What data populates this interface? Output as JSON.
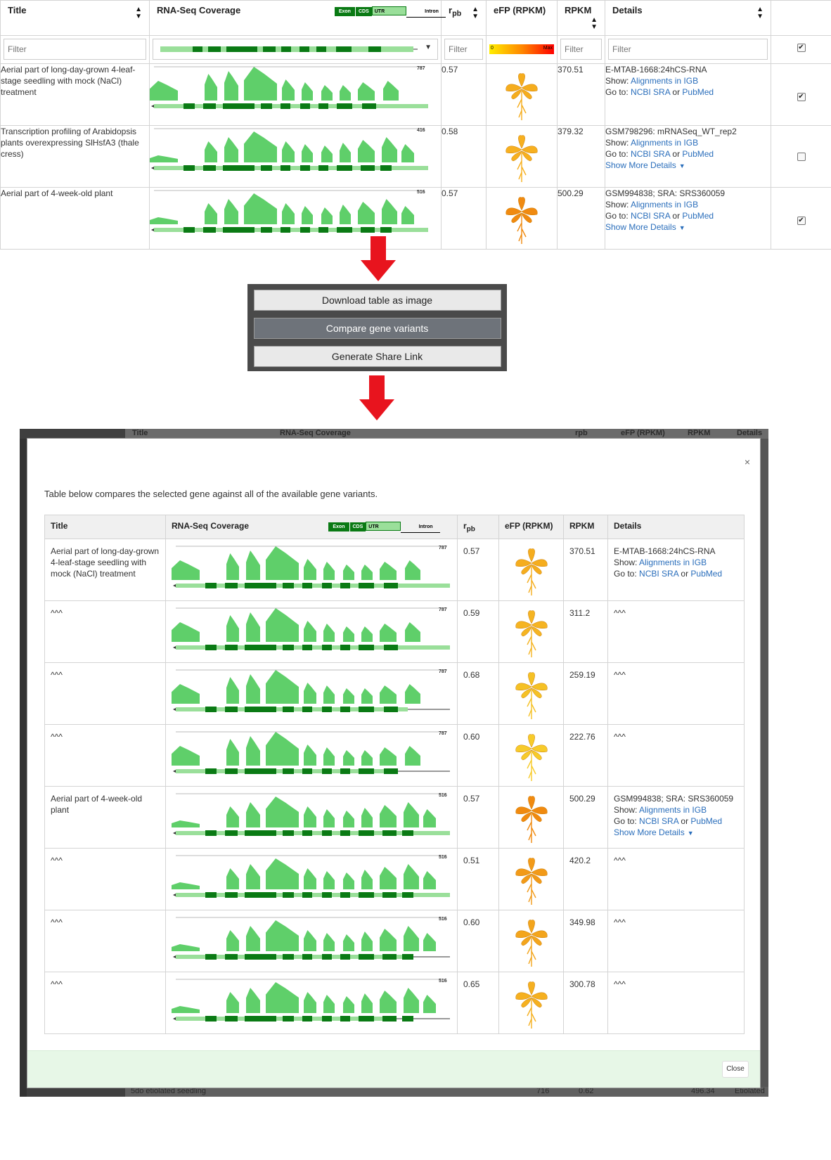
{
  "columns": {
    "title": "Title",
    "coverage": "RNA-Seq Coverage",
    "rpb_base": "r",
    "rpb_sub": "pb",
    "efp": "eFP (RPKM)",
    "rpkm": "RPKM",
    "details": "Details"
  },
  "legend": {
    "exon": "Exon",
    "cds": "CDS",
    "utr": "UTR",
    "intron": "Intron"
  },
  "efp_scale": {
    "min": "0",
    "max": "Max"
  },
  "filter_placeholder": "Filter",
  "top_rows": [
    {
      "title": "Aerial part of long-day-grown 4-leaf-stage seedling with mock (NaCl) treatment",
      "cov_max": "787",
      "rpb": "0.57",
      "rpkm": "370.51",
      "id": "E-MTAB-1668:24hCS-RNA",
      "show_label": "Show:",
      "show_link": "Alignments in IGB",
      "goto_label": "Go to:",
      "sra": "NCBI SRA",
      "or": "or",
      "pubmed": "PubMed",
      "more": "",
      "checked": true,
      "efp_color": "#f5ad1e"
    },
    {
      "title": "Transcription profiling of Arabidopsis plants overexpressing SlHsfA3 (thale cress)",
      "cov_max": "416",
      "rpb": "0.58",
      "rpkm": "379.32",
      "id": "GSM798296: mRNASeq_WT_rep2",
      "show_label": "Show:",
      "show_link": "Alignments in IGB",
      "goto_label": "Go to:",
      "sra": "NCBI SRA",
      "or": "or",
      "pubmed": "PubMed",
      "more": "Show More Details",
      "checked": false,
      "efp_color": "#f7b020"
    },
    {
      "title": "Aerial part of 4-week-old plant",
      "cov_max": "516",
      "rpb": "0.57",
      "rpkm": "500.29",
      "id": "GSM994838; SRA: SRS360059",
      "show_label": "Show:",
      "show_link": "Alignments in IGB",
      "goto_label": "Go to:",
      "sra": "NCBI SRA",
      "or": "or",
      "pubmed": "PubMed",
      "more": "Show More Details",
      "checked": true,
      "efp_color": "#f08a10"
    }
  ],
  "menu": {
    "download": "Download table as image",
    "compare": "Compare gene variants",
    "share": "Generate Share Link"
  },
  "modal": {
    "close_x": "×",
    "description": "Table below compares the selected gene against all of the available gene variants.",
    "close_button": "Close"
  },
  "cmp_rows": [
    {
      "title": "Aerial part of long-day-grown 4-leaf-stage seedling with mock (NaCl) treatment",
      "cov_max": "787",
      "rpb": "0.57",
      "rpkm": "370.51",
      "id": "E-MTAB-1668:24hCS-RNA",
      "show_label": "Show:",
      "show_link": "Alignments in IGB",
      "goto_label": "Go to:",
      "sra": "NCBI SRA",
      "or": "or",
      "pubmed": "PubMed",
      "more": "",
      "details_plain": "",
      "efp_color": "#f5ad1e"
    },
    {
      "title": "^^^",
      "cov_max": "787",
      "rpb": "0.59",
      "rpkm": "311.2",
      "details_plain": "^^^",
      "efp_color": "#f5b422"
    },
    {
      "title": "^^^",
      "cov_max": "787",
      "rpb": "0.68",
      "rpkm": "259.19",
      "details_plain": "^^^",
      "efp_color": "#f5c125"
    },
    {
      "title": "^^^",
      "cov_max": "787",
      "rpb": "0.60",
      "rpkm": "222.76",
      "details_plain": "^^^",
      "efp_color": "#f7cb2a"
    },
    {
      "title": "Aerial part of 4-week-old plant",
      "cov_max": "516",
      "rpb": "0.57",
      "rpkm": "500.29",
      "id": "GSM994838; SRA: SRS360059",
      "show_label": "Show:",
      "show_link": "Alignments in IGB",
      "goto_label": "Go to:",
      "sra": "NCBI SRA",
      "or": "or",
      "pubmed": "PubMed",
      "more": "Show More Details",
      "details_plain": "",
      "efp_color": "#f08a10"
    },
    {
      "title": "^^^",
      "cov_max": "516",
      "rpb": "0.51",
      "rpkm": "420.2",
      "details_plain": "^^^",
      "efp_color": "#f29a18"
    },
    {
      "title": "^^^",
      "cov_max": "516",
      "rpb": "0.60",
      "rpkm": "349.98",
      "details_plain": "^^^",
      "efp_color": "#f3a51c"
    },
    {
      "title": "^^^",
      "cov_max": "516",
      "rpb": "0.65",
      "rpkm": "300.78",
      "details_plain": "^^^",
      "efp_color": "#f5b020"
    }
  ],
  "background": {
    "header": [
      "Title",
      "RNA-Seq Coverage",
      "rpb",
      "eFP (RPKM)",
      "RPKM",
      "Details"
    ],
    "bottom": [
      "5do etiolated seedling",
      "716",
      "0.62",
      "496.34",
      "Etiolated"
    ]
  },
  "colors": {
    "exon": "#0a7a14",
    "coverage": "#5fcf6a",
    "utr": "#9adf9a",
    "arrow": "#e8141e",
    "link": "#2a6ebb"
  }
}
